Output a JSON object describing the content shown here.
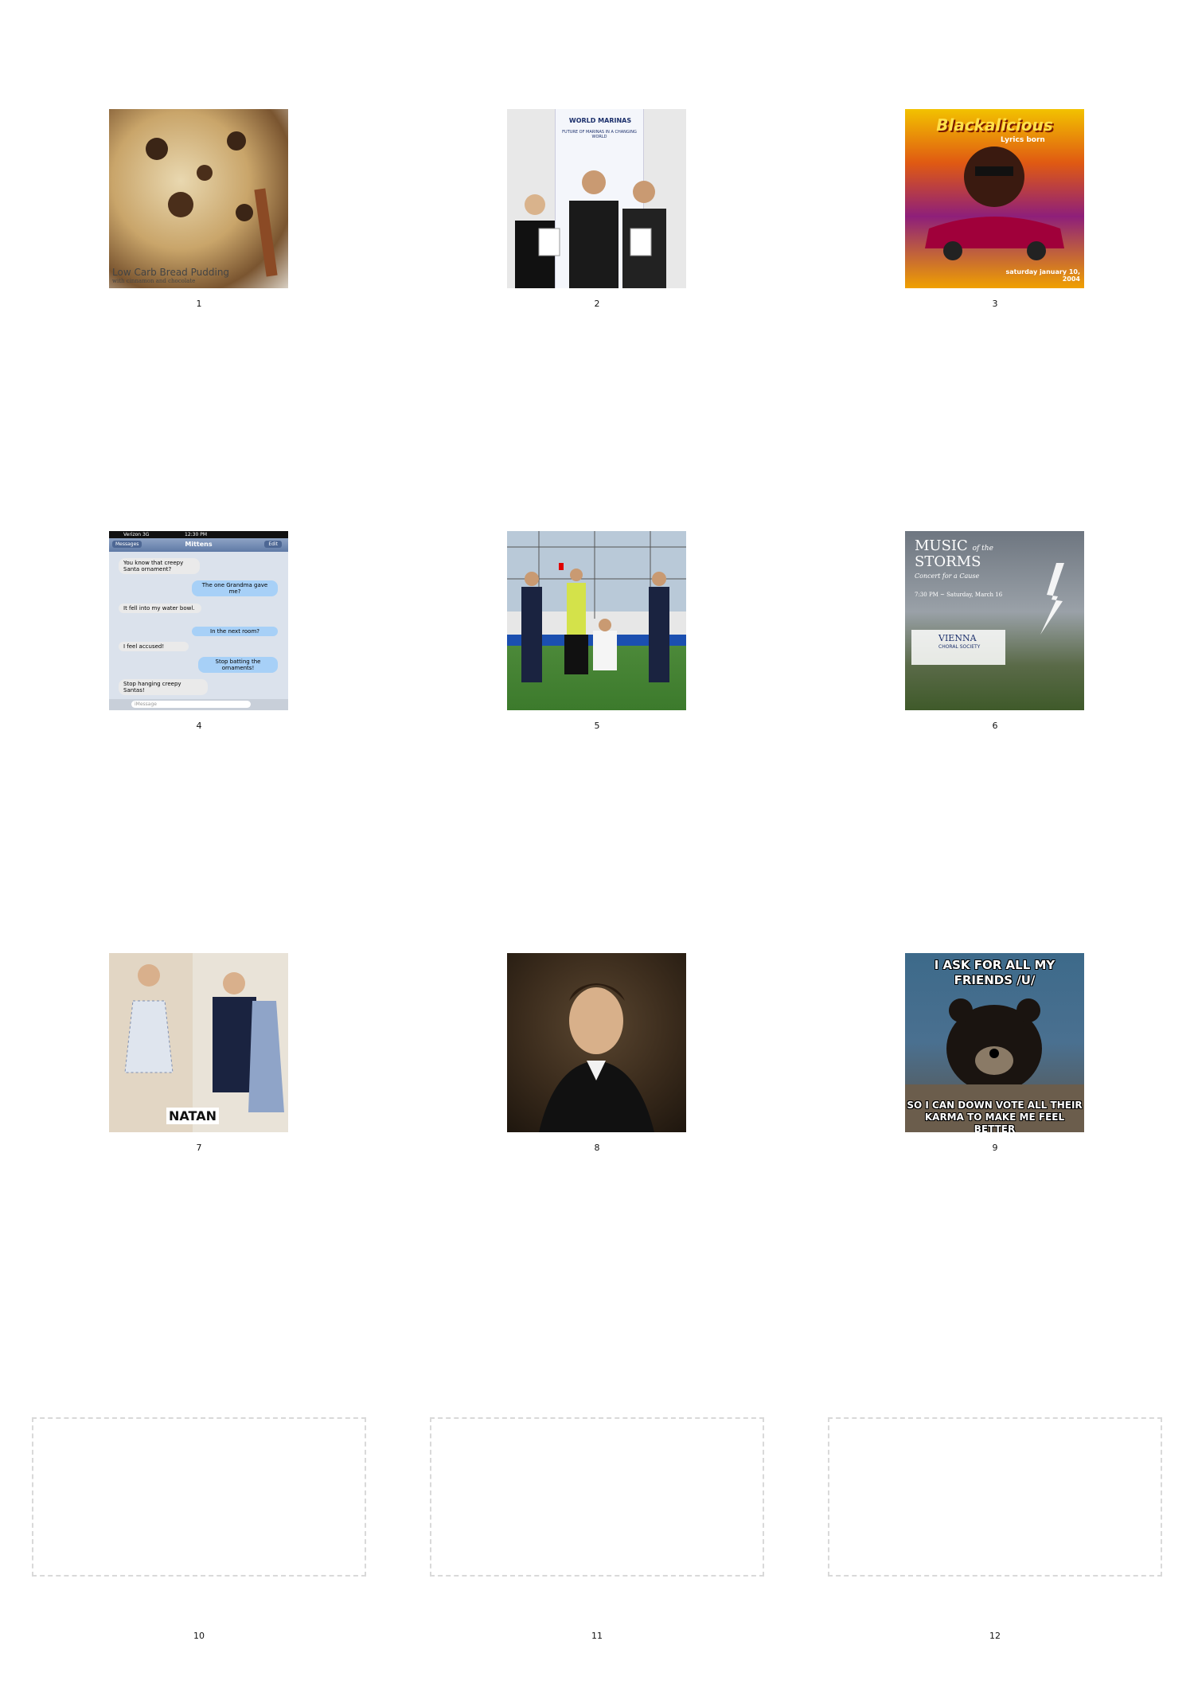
{
  "panels": [
    {
      "number": "1",
      "caption": "Low Carb Bread Pudding",
      "subcaption": "with cinnamon and chocolate"
    },
    {
      "number": "2",
      "caption": "WORLD MARINAS",
      "subcaption": "FUTURE OF MARINAS IN A CHANGING WORLD"
    },
    {
      "number": "3",
      "caption": "Blackalicious",
      "subcaption": "Lyrics born",
      "date": "saturday january 10, 2004"
    },
    {
      "number": "4",
      "carrier": "Verizon 3G",
      "time": "12:30 PM",
      "back": "Messages",
      "contact": "Mittens",
      "edit": "Edit",
      "messages": [
        {
          "side": "left",
          "text": "You know that creepy Santa ornament?"
        },
        {
          "side": "right",
          "text": "The one Grandma gave me?"
        },
        {
          "side": "left",
          "text": "It fell into my water bowl."
        },
        {
          "side": "right",
          "text": "In the next room?"
        },
        {
          "side": "left",
          "text": "I feel accused!"
        },
        {
          "side": "right",
          "text": "Stop batting the ornaments!"
        },
        {
          "side": "left",
          "text": "Stop hanging creepy Santas!"
        }
      ],
      "input_placeholder": "iMessage"
    },
    {
      "number": "5"
    },
    {
      "number": "6",
      "title_a": "MUSIC",
      "title_of": "of the",
      "title_b": "STORMS",
      "subtitle": "Concert for a Cause",
      "time": "7:30 PM ~ Saturday, March 16",
      "org": "VIENNA",
      "org_sub": "CHORAL SOCIETY"
    },
    {
      "number": "7",
      "label": "NATAN"
    },
    {
      "number": "8"
    },
    {
      "number": "9",
      "top_text": "I ASK FOR ALL MY FRIENDS /U/",
      "bottom_text": "SO I CAN DOWN VOTE ALL THEIR KARMA TO MAKE ME FEEL BETTER"
    },
    {
      "number": "10"
    },
    {
      "number": "11"
    },
    {
      "number": "12"
    }
  ],
  "colors": {
    "background": "#ffffff",
    "caption_red": "#ff0000"
  }
}
